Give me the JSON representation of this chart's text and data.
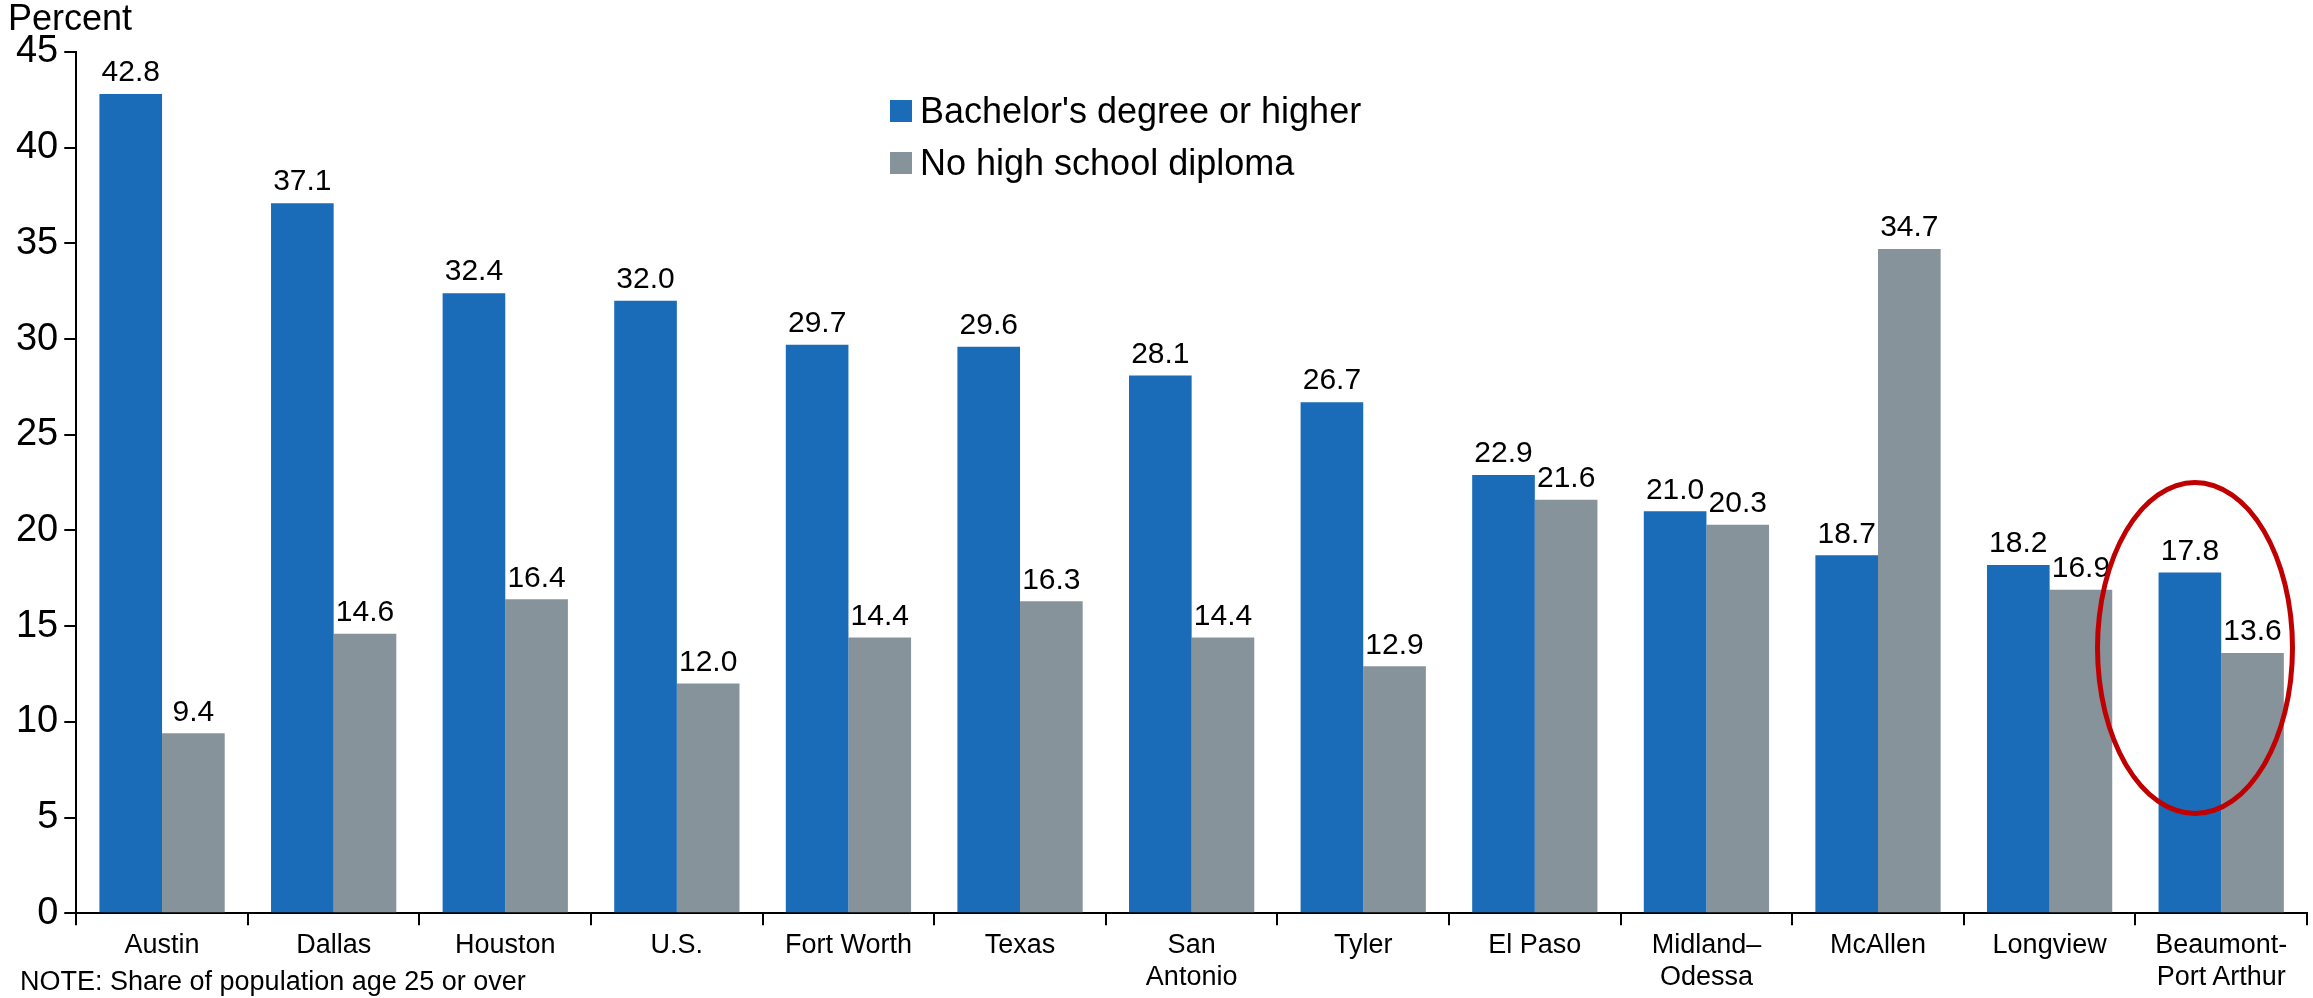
{
  "chart_data": {
    "type": "bar",
    "ylabel": "Percent",
    "categories": [
      "Austin",
      "Dallas",
      "Houston",
      "U.S.",
      "Fort Worth",
      "Texas",
      "San\nAntonio",
      "Tyler",
      "El Paso",
      "Midland–\nOdessa",
      "McAllen",
      "Longview",
      "Beaumont-\nPort Arthur"
    ],
    "series": [
      {
        "name": "Bachelor's degree or higher",
        "color": "#1a6bb8",
        "values": [
          42.8,
          37.1,
          32.4,
          32.0,
          29.7,
          29.6,
          28.1,
          26.7,
          22.9,
          21.0,
          18.7,
          18.2,
          17.8
        ],
        "value_labels": [
          "42.8",
          "37.1",
          "32.4",
          "32.0",
          "29.7",
          "29.6",
          "28.1",
          "26.7",
          "22.9",
          "21.0",
          "18.7",
          "18.2",
          "17.8"
        ]
      },
      {
        "name": "No high school diploma",
        "color": "#87939a",
        "values": [
          9.4,
          14.6,
          16.4,
          12.0,
          14.4,
          16.3,
          14.4,
          12.9,
          21.6,
          20.3,
          34.7,
          16.9,
          13.6
        ],
        "value_labels": [
          "9.4",
          "14.6",
          "16.4",
          "12.0",
          "14.4",
          "16.3",
          "14.4",
          "12.9",
          "21.6",
          "20.3",
          "34.7",
          "16.9",
          "13.6"
        ]
      }
    ],
    "ylim": [
      0,
      45
    ],
    "yticks": [
      0,
      5,
      10,
      15,
      20,
      25,
      30,
      35,
      40,
      45
    ],
    "grid": false,
    "legend": "top",
    "annotations": [
      "NOTE: Share of population age 25 or over"
    ]
  }
}
